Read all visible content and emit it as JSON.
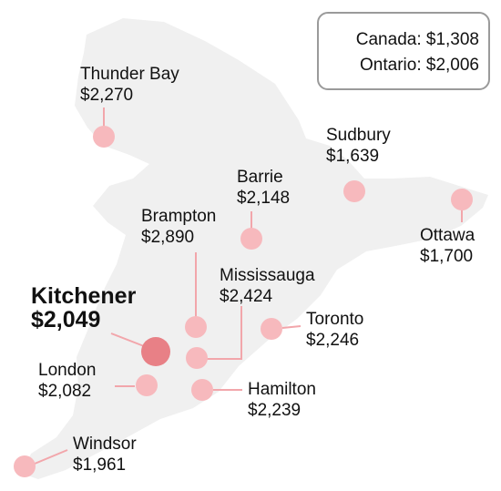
{
  "summary": {
    "canada": "Canada: $1,308",
    "ontario": "Ontario: $2,006"
  },
  "colors": {
    "land": "#f0f0f0",
    "marker": "#f7b9bd",
    "marker_highlight": "#e88086",
    "leader": "#f2a6ab"
  },
  "cities": [
    {
      "id": "thunder-bay",
      "name": "Thunder Bay",
      "rent": "$2,270"
    },
    {
      "id": "sudbury",
      "name": "Sudbury",
      "rent": "$1,639"
    },
    {
      "id": "barrie",
      "name": "Barrie",
      "rent": "$2,148"
    },
    {
      "id": "ottawa",
      "name": "Ottawa",
      "rent": "$1,700"
    },
    {
      "id": "brampton",
      "name": "Brampton",
      "rent": "$2,890"
    },
    {
      "id": "mississauga",
      "name": "Mississauga",
      "rent": "$2,424"
    },
    {
      "id": "kitchener",
      "name": "Kitchener",
      "rent": "$2,049"
    },
    {
      "id": "toronto",
      "name": "Toronto",
      "rent": "$2,246"
    },
    {
      "id": "london",
      "name": "London",
      "rent": "$2,082"
    },
    {
      "id": "hamilton",
      "name": "Hamilton",
      "rent": "$2,239"
    },
    {
      "id": "windsor",
      "name": "Windsor",
      "rent": "$1,961"
    }
  ]
}
